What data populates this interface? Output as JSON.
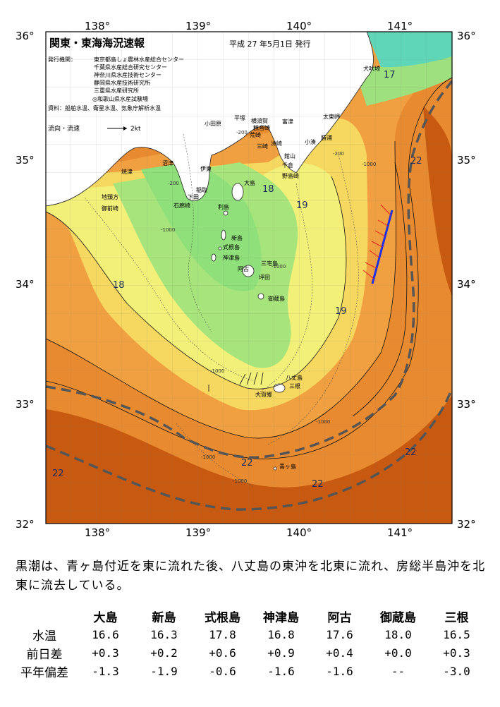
{
  "map": {
    "title": "関東・東海海況速報",
    "date": "平成 27 年5月1日 発行",
    "issuers_label": "発行機関：",
    "issuers": [
      "東京都島しょ農林水産総合センター",
      "千葉県水産総合研究センター",
      "神奈川県水産技術センター",
      "静岡県水産技術研究所",
      "三重県水産研究所",
      "◎和歌山県水産試験場"
    ],
    "sources": "資料：船舶水温、衛星水温、気象庁解析水温",
    "legend_label": "流向・流速",
    "legend_speed": "2kt",
    "lon_labels": [
      "138°",
      "139°",
      "140°",
      "141°"
    ],
    "lat_labels": [
      "36°",
      "35°",
      "34°",
      "33°",
      "32°"
    ],
    "isotherm_labels": [
      "17",
      "18",
      "19",
      "18",
      "19",
      "22",
      "22",
      "22",
      "22",
      "22"
    ],
    "depth_labels": [
      "-200",
      "-1000",
      "-200",
      "-1000",
      "-200",
      "-1000",
      "-1000",
      "-1000",
      "-1000",
      "-1000"
    ],
    "places": [
      "犬吠埼",
      "太東岬",
      "勝浦",
      "小湊",
      "洲崎",
      "館山",
      "千倉",
      "野島崎",
      "平塚",
      "横須賀",
      "観音崎",
      "荒崎",
      "三崎",
      "小田原",
      "富津",
      "伊東",
      "稲取",
      "下田",
      "石廊崎",
      "焼津",
      "御前崎",
      "地頭方",
      "大島",
      "利島",
      "新島",
      "式根島",
      "神津島",
      "三宅島",
      "阿古",
      "坪田",
      "御蔵島",
      "八丈島",
      "三根",
      "大賀郷",
      "青ヶ島",
      "沼津"
    ]
  },
  "summary": "黒潮は、青ヶ島付近を東に流れた後、八丈島の東沖を北東に流れ、房総半島沖を北東に流去している。",
  "table": {
    "stations": [
      "大島",
      "新島",
      "式根島",
      "神津島",
      "阿古",
      "御蔵島",
      "三根"
    ],
    "rows": [
      {
        "label": "水温",
        "values": [
          "16.6",
          "16.3",
          "17.8",
          "16.8",
          "17.6",
          "18.0",
          "16.5"
        ]
      },
      {
        "label": "前日差",
        "values": [
          "+0.3",
          "+0.2",
          "+0.6",
          "+0.9",
          "+0.4",
          "+0.0",
          "+0.3"
        ]
      },
      {
        "label": "平年偏差",
        "values": [
          "-1.3",
          "-1.9",
          "-0.6",
          "-1.6",
          "-1.6",
          "--",
          "-3.0"
        ]
      }
    ]
  },
  "colors": {
    "land": "#ffffff",
    "ocean_cool": "#8fe07a",
    "ocean_mid": "#f3f07a",
    "ocean_warm": "#f0a040",
    "ocean_hot": "#c75a10",
    "kuroshio_axis": "#555555",
    "current_track": "#2030e0"
  }
}
